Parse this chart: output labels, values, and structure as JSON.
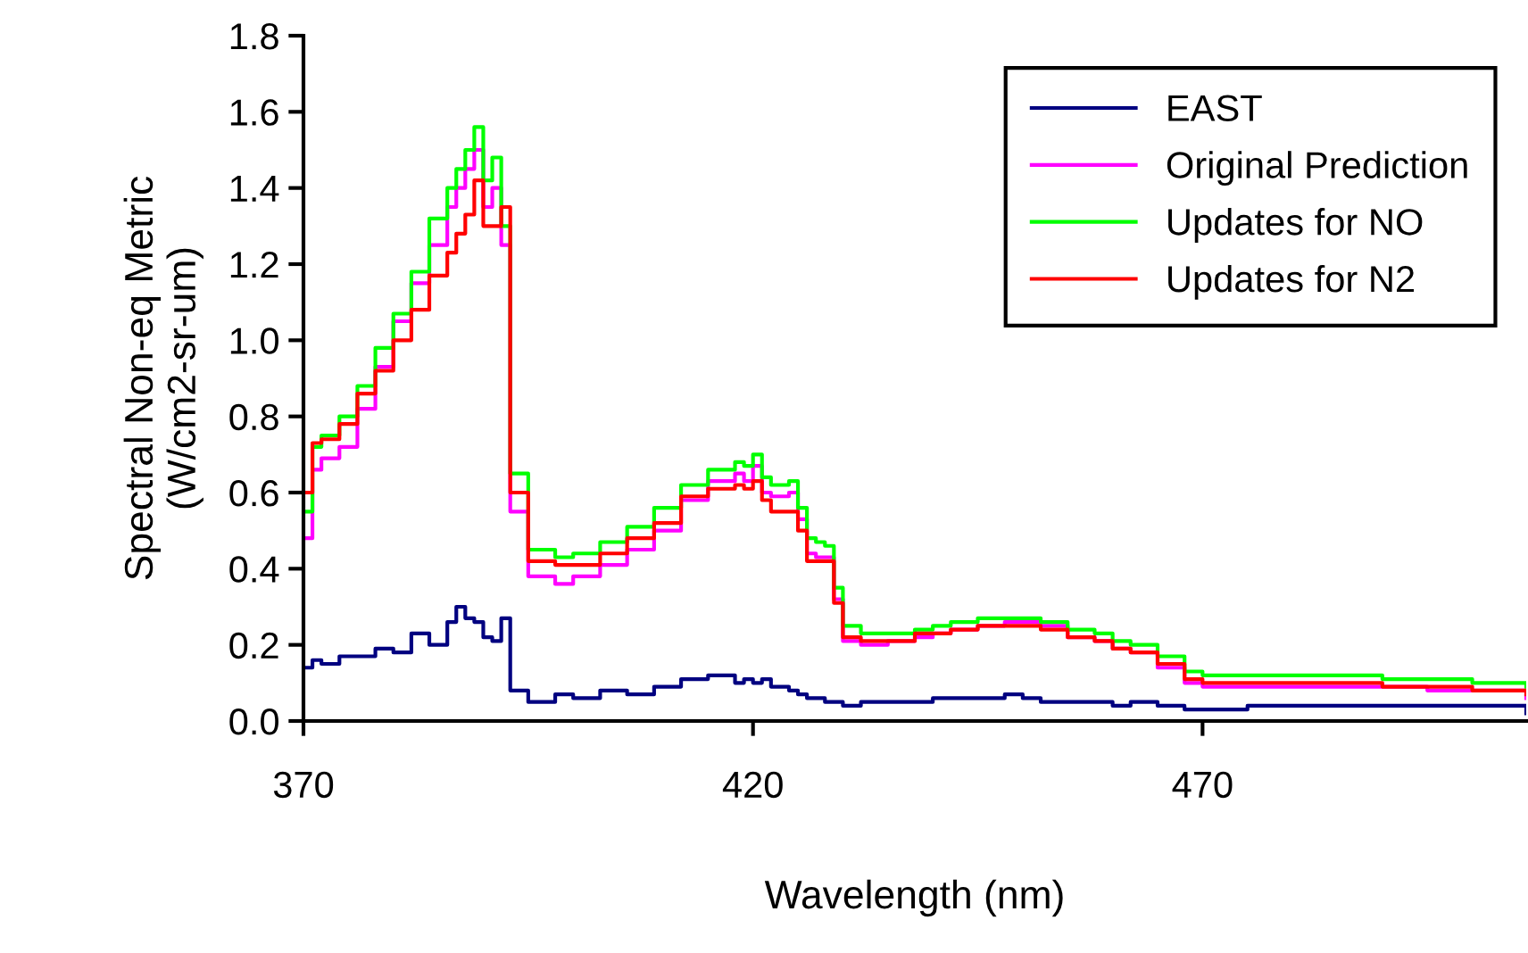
{
  "chart_data": {
    "type": "step",
    "xlabel": "Wavelength (nm)",
    "ylabel": "Spectral Non-eq Metric\n(W/cm2-sr-um)",
    "x": [
      370,
      371,
      372,
      374,
      376,
      378,
      380,
      382,
      384,
      386,
      387,
      388,
      389,
      390,
      391,
      392,
      393,
      395,
      398,
      400,
      403,
      406,
      409,
      412,
      415,
      418,
      419,
      420,
      421,
      422,
      424,
      425,
      426,
      427,
      428,
      429,
      430,
      432,
      435,
      438,
      440,
      442,
      445,
      448,
      450,
      452,
      455,
      458,
      460,
      462,
      465,
      468,
      470,
      475,
      480,
      485,
      490,
      495,
      500,
      506
    ],
    "series": [
      {
        "name": "EAST",
        "color": "#000080",
        "values": [
          0.14,
          0.16,
          0.15,
          0.17,
          0.17,
          0.19,
          0.18,
          0.23,
          0.2,
          0.26,
          0.3,
          0.27,
          0.26,
          0.22,
          0.21,
          0.27,
          0.08,
          0.05,
          0.07,
          0.06,
          0.08,
          0.07,
          0.09,
          0.11,
          0.12,
          0.1,
          0.11,
          0.1,
          0.11,
          0.09,
          0.08,
          0.07,
          0.06,
          0.06,
          0.05,
          0.05,
          0.04,
          0.05,
          0.05,
          0.05,
          0.06,
          0.06,
          0.06,
          0.07,
          0.06,
          0.05,
          0.05,
          0.05,
          0.04,
          0.05,
          0.04,
          0.03,
          0.03,
          0.04,
          0.04,
          0.04,
          0.04,
          0.04,
          0.04,
          0.02
        ]
      },
      {
        "name": "Original Prediction",
        "color": "#ff00ff",
        "values": [
          0.48,
          0.66,
          0.69,
          0.72,
          0.82,
          0.93,
          1.05,
          1.15,
          1.25,
          1.35,
          1.4,
          1.45,
          1.5,
          1.35,
          1.4,
          1.25,
          0.55,
          0.38,
          0.36,
          0.38,
          0.41,
          0.45,
          0.5,
          0.58,
          0.63,
          0.65,
          0.63,
          0.67,
          0.6,
          0.59,
          0.6,
          0.53,
          0.44,
          0.43,
          0.43,
          0.32,
          0.21,
          0.2,
          0.21,
          0.22,
          0.23,
          0.24,
          0.25,
          0.26,
          0.26,
          0.25,
          0.22,
          0.21,
          0.19,
          0.18,
          0.14,
          0.1,
          0.09,
          0.09,
          0.09,
          0.09,
          0.09,
          0.08,
          0.08,
          0.06
        ]
      },
      {
        "name": "Updates for NO",
        "color": "#00ff00",
        "values": [
          0.55,
          0.72,
          0.75,
          0.8,
          0.88,
          0.98,
          1.07,
          1.18,
          1.32,
          1.4,
          1.45,
          1.5,
          1.56,
          1.42,
          1.48,
          1.3,
          0.65,
          0.45,
          0.43,
          0.44,
          0.47,
          0.51,
          0.56,
          0.62,
          0.66,
          0.68,
          0.67,
          0.7,
          0.64,
          0.62,
          0.63,
          0.56,
          0.48,
          0.47,
          0.46,
          0.35,
          0.25,
          0.23,
          0.23,
          0.24,
          0.25,
          0.26,
          0.27,
          0.27,
          0.27,
          0.26,
          0.24,
          0.23,
          0.21,
          0.2,
          0.17,
          0.13,
          0.12,
          0.12,
          0.12,
          0.12,
          0.11,
          0.11,
          0.1,
          0.09
        ]
      },
      {
        "name": "Updates for N2",
        "color": "#ff0000",
        "values": [
          0.6,
          0.73,
          0.74,
          0.78,
          0.86,
          0.92,
          1.0,
          1.08,
          1.17,
          1.23,
          1.28,
          1.33,
          1.42,
          1.3,
          1.3,
          1.35,
          0.6,
          0.42,
          0.41,
          0.41,
          0.44,
          0.48,
          0.52,
          0.59,
          0.61,
          0.62,
          0.61,
          0.63,
          0.58,
          0.55,
          0.55,
          0.5,
          0.42,
          0.42,
          0.42,
          0.31,
          0.22,
          0.21,
          0.21,
          0.23,
          0.23,
          0.24,
          0.25,
          0.25,
          0.25,
          0.24,
          0.22,
          0.21,
          0.19,
          0.18,
          0.15,
          0.11,
          0.1,
          0.1,
          0.1,
          0.1,
          0.09,
          0.09,
          0.08,
          0.07
        ]
      }
    ],
    "xlim": [
      370,
      506
    ],
    "xticks": [
      370,
      420,
      470
    ],
    "ylim": [
      0,
      1.8
    ],
    "yticks": [
      {
        "value": 0,
        "label": "0.0"
      },
      {
        "value": 0.2,
        "label": "0.2"
      },
      {
        "value": 0.4,
        "label": "0.4"
      },
      {
        "value": 0.6,
        "label": "0.6"
      },
      {
        "value": 0.8,
        "label": "0.8"
      },
      {
        "value": 1.0,
        "label": "1.0"
      },
      {
        "value": 1.2,
        "label": "1.2"
      },
      {
        "value": 1.4,
        "label": "1.4"
      },
      {
        "value": 1.6,
        "label": "1.6"
      },
      {
        "value": 1.8,
        "label": "1.8"
      }
    ],
    "grid": false,
    "legend": "top right"
  }
}
